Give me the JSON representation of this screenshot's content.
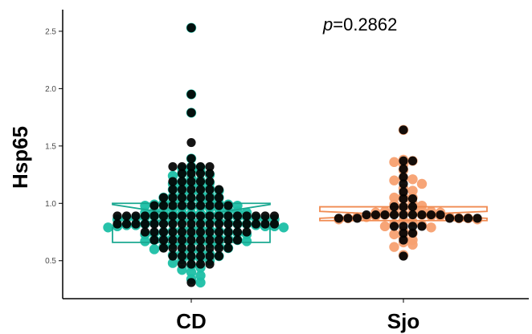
{
  "chart_data": {
    "type": "scatter",
    "subtype": "beeswarm-with-notched-box",
    "ylabel": "Hsp65",
    "xlabel": "",
    "categories": [
      "CD",
      "Sjo"
    ],
    "ylim": [
      0.2,
      2.6
    ],
    "yticks": [
      "0.5",
      "1.0",
      "1.5",
      "2.0",
      "2.5"
    ],
    "annotation": {
      "prefix": "p",
      "text": "=0.2862"
    },
    "grid": false,
    "legend": "none",
    "colors": {
      "CD": "#1bbfa5",
      "Sjo": "#f7a070",
      "CD_box": "#1aa891",
      "Sjo_box": "#f08a50",
      "overlay": "#000000"
    },
    "boxes": [
      {
        "group": "CD",
        "q1": 0.66,
        "median": 0.89,
        "q3": 1.0,
        "notch_low": 0.79,
        "notch_high": 0.99
      },
      {
        "group": "Sjo",
        "q1": 0.85,
        "median": 0.9,
        "q3": 0.97,
        "notch_low": 0.87,
        "notch_high": 0.93
      }
    ],
    "series": [
      {
        "name": "CD",
        "values": [
          2.53,
          1.95,
          1.79,
          1.39,
          1.32,
          1.31,
          1.3,
          1.29,
          1.28,
          1.26,
          1.25,
          1.24,
          1.22,
          1.2,
          1.19,
          1.18,
          1.17,
          1.16,
          1.15,
          1.14,
          1.13,
          1.12,
          1.11,
          1.1,
          1.09,
          1.08,
          1.07,
          1.06,
          1.05,
          1.05,
          1.04,
          1.03,
          1.02,
          1.02,
          1.01,
          1.0,
          1.0,
          0.99,
          0.99,
          0.98,
          0.98,
          0.97,
          0.97,
          0.96,
          0.96,
          0.95,
          0.95,
          0.94,
          0.94,
          0.93,
          0.93,
          0.92,
          0.92,
          0.91,
          0.91,
          0.91,
          0.9,
          0.9,
          0.9,
          0.89,
          0.89,
          0.89,
          0.88,
          0.88,
          0.88,
          0.87,
          0.87,
          0.87,
          0.86,
          0.86,
          0.86,
          0.85,
          0.85,
          0.85,
          0.84,
          0.84,
          0.84,
          0.83,
          0.83,
          0.83,
          0.82,
          0.82,
          0.82,
          0.81,
          0.81,
          0.81,
          0.8,
          0.8,
          0.8,
          0.79,
          0.79,
          0.78,
          0.78,
          0.77,
          0.77,
          0.76,
          0.76,
          0.75,
          0.75,
          0.74,
          0.74,
          0.73,
          0.73,
          0.72,
          0.72,
          0.71,
          0.71,
          0.7,
          0.7,
          0.69,
          0.69,
          0.68,
          0.68,
          0.67,
          0.67,
          0.66,
          0.66,
          0.65,
          0.65,
          0.64,
          0.63,
          0.62,
          0.61,
          0.6,
          0.59,
          0.58,
          0.57,
          0.56,
          0.55,
          0.54,
          0.53,
          0.52,
          0.51,
          0.5,
          0.48,
          0.46,
          0.44,
          0.42,
          0.4,
          0.37,
          0.34,
          0.31
        ]
      },
      {
        "name": "Sjo",
        "values": [
          1.64,
          1.38,
          1.37,
          1.36,
          1.34,
          1.29,
          1.22,
          1.21,
          1.2,
          1.17,
          1.13,
          1.11,
          1.06,
          1.05,
          1.05,
          1.04,
          1.0,
          0.99,
          0.98,
          0.97,
          0.96,
          0.95,
          0.94,
          0.93,
          0.93,
          0.92,
          0.92,
          0.91,
          0.91,
          0.91,
          0.9,
          0.9,
          0.89,
          0.89,
          0.89,
          0.88,
          0.88,
          0.88,
          0.87,
          0.87,
          0.87,
          0.86,
          0.86,
          0.85,
          0.84,
          0.82,
          0.81,
          0.8,
          0.79,
          0.76,
          0.74,
          0.73,
          0.7,
          0.68,
          0.66,
          0.64,
          0.62,
          0.55
        ]
      }
    ],
    "overlay_series": [
      {
        "name": "CD",
        "values": [
          2.53,
          1.95,
          1.79,
          1.53,
          1.39,
          1.32,
          1.32,
          1.32,
          1.32,
          1.32,
          1.26,
          1.26,
          1.26,
          1.26,
          1.19,
          1.19,
          1.19,
          1.19,
          1.19,
          1.12,
          1.12,
          1.12,
          1.12,
          1.12,
          1.12,
          1.05,
          1.05,
          1.05,
          1.05,
          1.05,
          1.05,
          1.05,
          0.98,
          0.98,
          0.98,
          0.98,
          0.98,
          0.98,
          0.98,
          0.98,
          0.98,
          0.89,
          0.89,
          0.89,
          0.89,
          0.89,
          0.89,
          0.89,
          0.89,
          0.89,
          0.89,
          0.89,
          0.89,
          0.89,
          0.89,
          0.89,
          0.89,
          0.89,
          0.89,
          0.82,
          0.82,
          0.82,
          0.82,
          0.82,
          0.82,
          0.82,
          0.82,
          0.82,
          0.82,
          0.82,
          0.82,
          0.82,
          0.82,
          0.82,
          0.82,
          0.82,
          0.82,
          0.75,
          0.75,
          0.75,
          0.75,
          0.75,
          0.75,
          0.75,
          0.75,
          0.75,
          0.75,
          0.75,
          0.75,
          0.68,
          0.68,
          0.68,
          0.68,
          0.68,
          0.68,
          0.68,
          0.68,
          0.68,
          0.68,
          0.61,
          0.61,
          0.61,
          0.61,
          0.61,
          0.61,
          0.61,
          0.61,
          0.54,
          0.54,
          0.54,
          0.54,
          0.54,
          0.54,
          0.47,
          0.47,
          0.47,
          0.47,
          0.31
        ]
      },
      {
        "name": "Sjo",
        "values": [
          1.64,
          1.37,
          1.37,
          1.3,
          1.23,
          1.17,
          1.1,
          1.04,
          1.04,
          0.97,
          0.97,
          0.97,
          0.9,
          0.9,
          0.9,
          0.9,
          0.9,
          0.9,
          0.9,
          0.9,
          0.9,
          0.87,
          0.87,
          0.87,
          0.87,
          0.87,
          0.87,
          0.87,
          0.8,
          0.8,
          0.8,
          0.8,
          0.74,
          0.74,
          0.68,
          0.54
        ]
      }
    ]
  }
}
